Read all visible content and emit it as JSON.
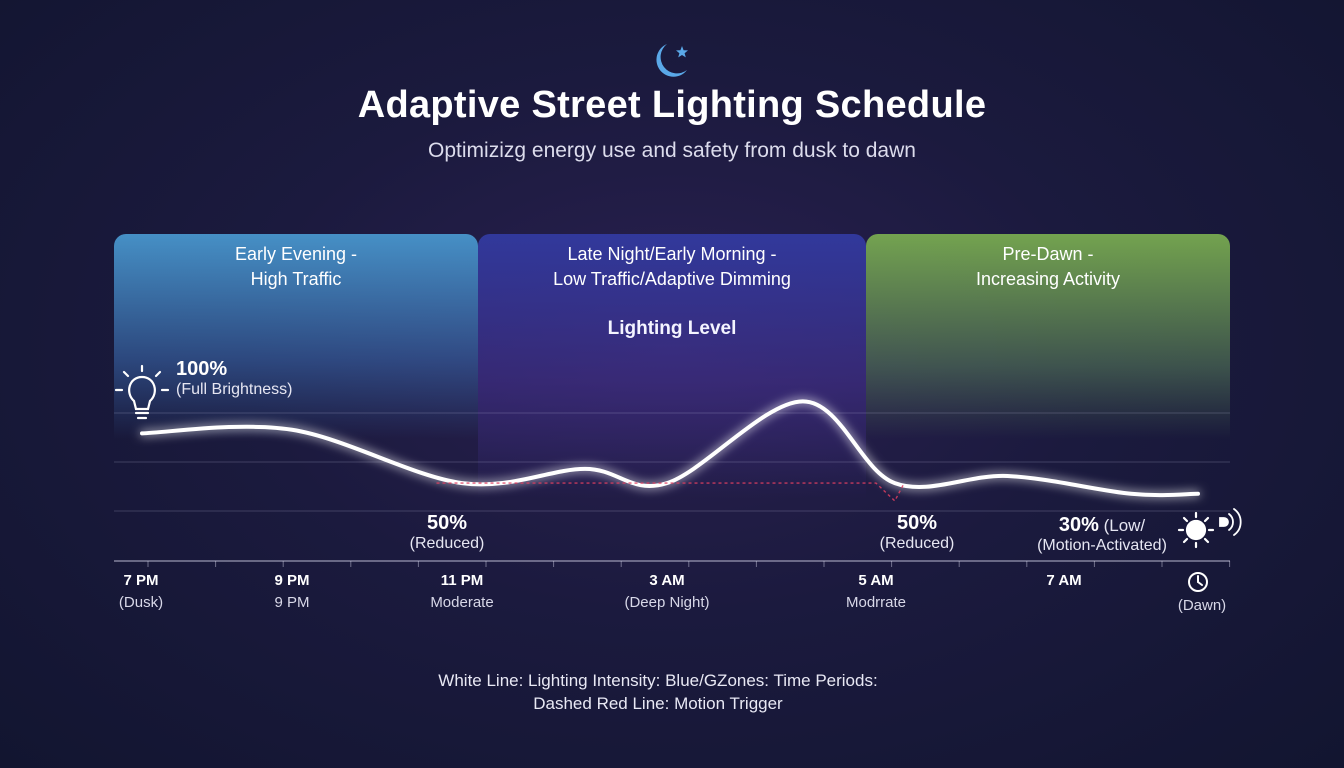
{
  "header": {
    "title": "Adaptive Street Lighting Schedule",
    "subtitle": "Optimizizg energy use and safety from dusk to dawn",
    "icon": "moon-star-icon"
  },
  "zones": [
    {
      "label_1": "Early Evening -",
      "label_2": "High Traffic",
      "color": "#4a90c8"
    },
    {
      "label_1": "Late Night/Early Morning -",
      "label_2": "Low Traffic/Adaptive Dimming",
      "color": "#3a3ea0"
    },
    {
      "label_1": "Pre-Dawn -",
      "label_2": "Increasing Activity",
      "color": "#7aa85a"
    }
  ],
  "chart_title": "Lighting Level",
  "annotations": {
    "a1": {
      "big": "100%",
      "small": "(Full Brightness)"
    },
    "a2": {
      "big": "50%",
      "small": "(Reduced)"
    },
    "a3": {
      "big": "50%",
      "small": "(Reduced)"
    },
    "a4": {
      "big": "30%",
      "big_suffix": " (Low/",
      "small": "(Motion-Activated)"
    }
  },
  "ticks": [
    {
      "t1": "7 PM",
      "t2": "(Dusk)"
    },
    {
      "t1": "9 PM",
      "t2": "9 PM"
    },
    {
      "t1": "11 PM",
      "t2": "Moderate"
    },
    {
      "t1": "3 AM",
      "t2": "(Deep Night)"
    },
    {
      "t1": "5 AM",
      "t2": "Modrrate"
    },
    {
      "t1": "7 AM",
      "t2": ""
    },
    {
      "t1": "",
      "t2": "(Dawn)"
    }
  ],
  "legend": {
    "line_1": "White Line: Lighting Intensity: Blue/GZones: Time Periods:",
    "line_2": "Dashed Red Line: Motion Trigger"
  },
  "icons": [
    "lightbulb-icon",
    "sun-icon",
    "motion-sensor-icon",
    "clock-icon"
  ],
  "chart_data": {
    "type": "line",
    "title": "Lighting Level",
    "x_categories": [
      "7 PM",
      "9 PM",
      "11 PM",
      "3 AM",
      "5 AM",
      "7 AM",
      "(Dawn)"
    ],
    "series": [
      {
        "name": "Lighting Intensity",
        "color": "#ffffff",
        "points": [
          {
            "x": 0.0,
            "y": 100
          },
          {
            "x": 1.0,
            "y": 102
          },
          {
            "x": 2.0,
            "y": 72
          },
          {
            "x": 2.6,
            "y": 80
          },
          {
            "x": 3.0,
            "y": 72
          },
          {
            "x": 3.65,
            "y": 118
          },
          {
            "x": 4.1,
            "y": 72
          },
          {
            "x": 4.7,
            "y": 76
          },
          {
            "x": 5.5,
            "y": 66
          },
          {
            "x": 6.0,
            "y": 66
          }
        ]
      },
      {
        "name": "Motion Trigger",
        "color": "#e04060",
        "style": "dashed",
        "points": [
          {
            "x": 1.85,
            "y": 72
          },
          {
            "x": 4.0,
            "y": 72
          },
          {
            "x": 4.1,
            "y": 62
          },
          {
            "x": 4.15,
            "y": 72
          }
        ]
      }
    ],
    "ylim": [
      40,
      130
    ],
    "grid": true
  }
}
